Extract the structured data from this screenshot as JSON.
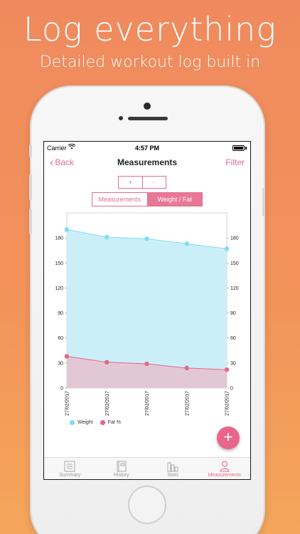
{
  "promo": {
    "headline": "Log everything",
    "subline": "Detailed workout log built in"
  },
  "status_bar": {
    "carrier": "Carrier",
    "time": "4:57 PM"
  },
  "nav": {
    "back_label": "Back",
    "title": "Measurements",
    "filter_label": "Filter"
  },
  "zoom_controls": {
    "plus": "+",
    "minus": "-"
  },
  "segments": {
    "measurements": "Measurements",
    "weight_fat": "Weight / Fat",
    "selected": "Weight / Fat"
  },
  "chart_data": {
    "type": "area",
    "categories": [
      "27/02/2017",
      "27/02/2017",
      "27/02/2017",
      "27/02/2017",
      "27/02/2017"
    ],
    "series": [
      {
        "name": "Weight",
        "values": [
          190,
          181,
          179,
          173,
          167
        ],
        "color": "#7fdcf2",
        "fill": "#c8eef9"
      },
      {
        "name": "Fat %",
        "values": [
          38,
          31,
          29,
          24,
          22
        ],
        "color": "#e8668a",
        "fill": "#e4c3cf"
      }
    ],
    "ylim": [
      0,
      210
    ],
    "yticks": [
      0,
      30,
      60,
      90,
      120,
      150,
      180
    ],
    "dual_axis": true,
    "grid": false,
    "legend": "bottom-left"
  },
  "fab": {
    "label": "+"
  },
  "tabs": [
    {
      "label": "Summary",
      "icon": "list-icon",
      "active": false
    },
    {
      "label": "History",
      "icon": "book-icon",
      "active": false
    },
    {
      "label": "Stats",
      "icon": "bar-chart-icon",
      "active": false
    },
    {
      "label": "Measurements",
      "icon": "person-icon",
      "active": true
    }
  ],
  "colors": {
    "accent": "#e8668a",
    "weight": "#7fdcf2",
    "fat": "#e8668a"
  }
}
